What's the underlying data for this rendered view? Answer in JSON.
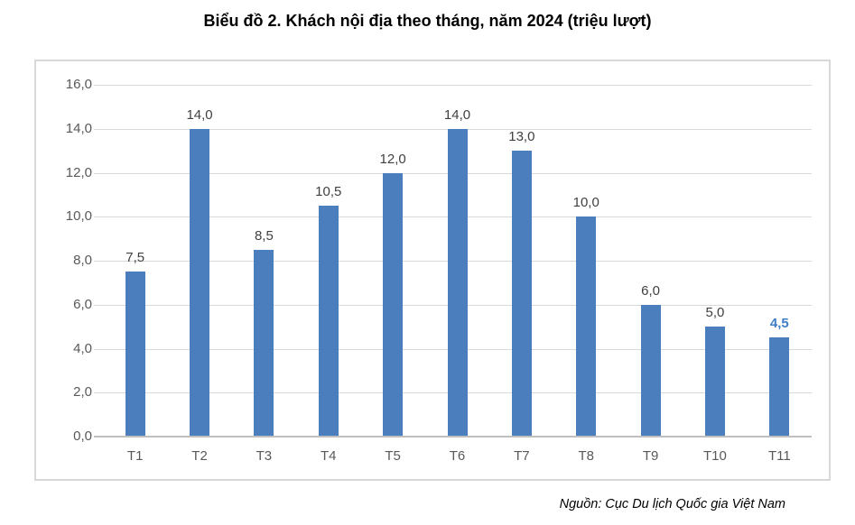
{
  "title": "Biểu đồ 2. Khách nội địa theo tháng, năm 2024 (triệu lượt)",
  "source_note": "Nguồn: Cục Du lịch Quốc gia Việt Nam",
  "colors": {
    "bar": "#4a7ebc",
    "data_label": "#404040",
    "highlight_label": "#3e7dc7",
    "axis_label": "#595959",
    "gridline": "#d9d9d9",
    "axis_line": "#bfbfbf",
    "frame_border": "#d8d8d8",
    "title": "#000000"
  },
  "chart_data": {
    "type": "bar",
    "title": "Biểu đồ 2. Khách nội địa theo tháng, năm 2024 (triệu lượt)",
    "categories": [
      "T1",
      "T2",
      "T3",
      "T4",
      "T5",
      "T6",
      "T7",
      "T8",
      "T9",
      "T10",
      "T11"
    ],
    "values": [
      7.5,
      14.0,
      8.5,
      10.5,
      12.0,
      14.0,
      13.0,
      10.0,
      6.0,
      5.0,
      4.5
    ],
    "data_labels": [
      "7,5",
      "14,0",
      "8,5",
      "10,5",
      "12,0",
      "14,0",
      "13,0",
      "10,0",
      "6,0",
      "5,0",
      "4,5"
    ],
    "highlight_index": 10,
    "xlabel": "",
    "ylabel": "",
    "ylim": [
      0,
      16
    ],
    "yticks": [
      {
        "value": 0,
        "label": "0,0"
      },
      {
        "value": 2,
        "label": "2,0"
      },
      {
        "value": 4,
        "label": "4,0"
      },
      {
        "value": 6,
        "label": "6,0"
      },
      {
        "value": 8,
        "label": "8,0"
      },
      {
        "value": 10,
        "label": "10,0"
      },
      {
        "value": 12,
        "label": "12,0"
      },
      {
        "value": 14,
        "label": "14,0"
      },
      {
        "value": 16,
        "label": "16,0"
      }
    ],
    "grid": true,
    "legend": "none",
    "source": "Nguồn: Cục Du lịch Quốc gia Việt Nam"
  }
}
